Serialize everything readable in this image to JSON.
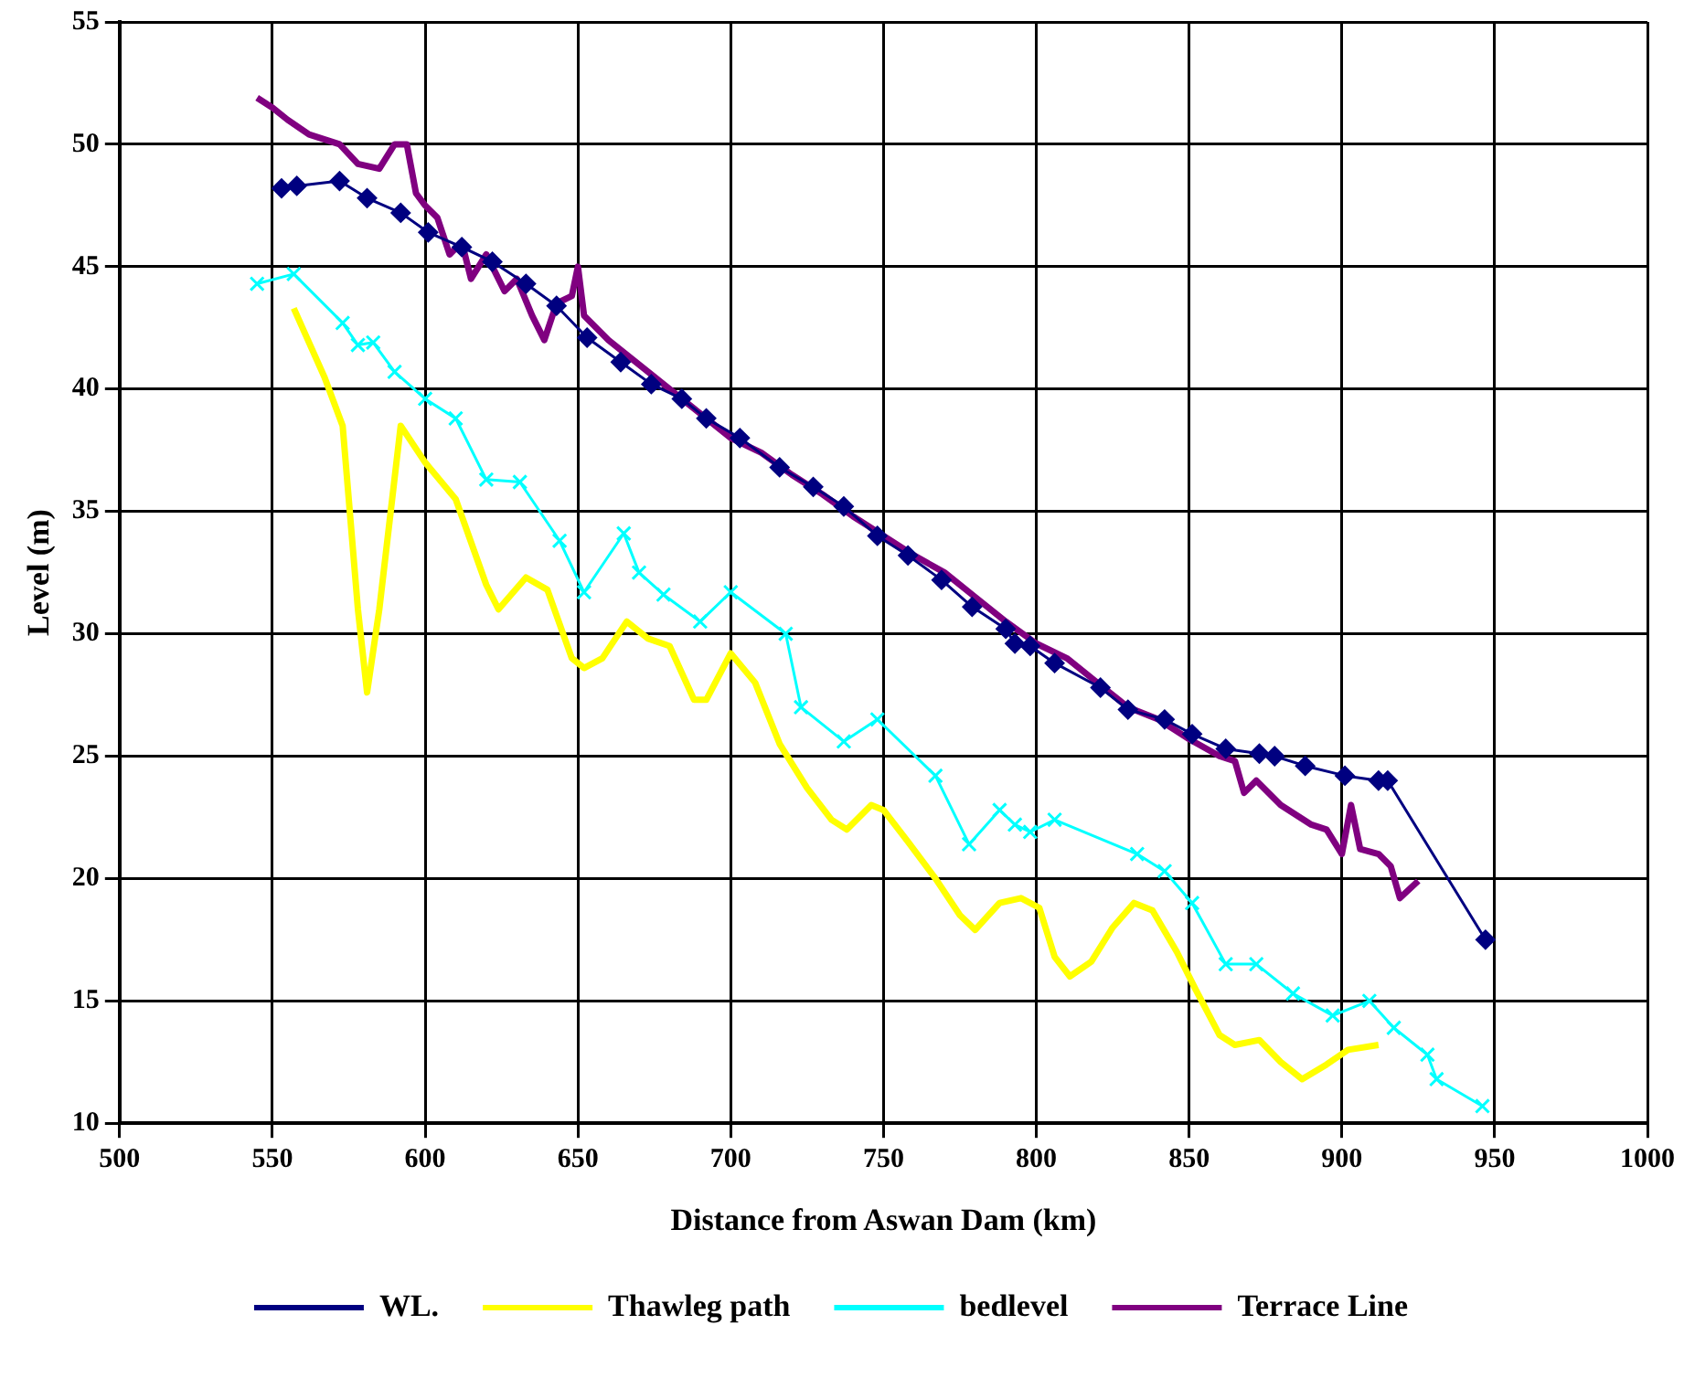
{
  "chart_data": {
    "type": "line",
    "xlabel": "Distance from Aswan Dam (km)",
    "ylabel": "Level (m)",
    "xlim": [
      500,
      1000
    ],
    "xticks": [
      500,
      550,
      600,
      650,
      700,
      750,
      800,
      850,
      900,
      950,
      1000
    ],
    "ylim": [
      10,
      55
    ],
    "yticks": [
      10,
      15,
      20,
      25,
      30,
      35,
      40,
      45,
      50,
      55
    ],
    "grid": true,
    "legend": "bottom",
    "series": [
      {
        "name": "WL.",
        "color": "#000080",
        "marker": "diamond",
        "x": [
          553,
          558,
          572,
          581,
          592,
          601,
          612,
          622,
          633,
          643,
          653,
          664,
          674,
          684,
          692,
          703,
          716,
          727,
          737,
          748,
          758,
          769,
          779,
          790,
          793,
          798,
          806,
          821,
          830,
          842,
          851,
          862,
          873,
          878,
          888,
          901,
          912,
          915,
          947
        ],
        "values": [
          48.2,
          48.3,
          48.5,
          47.8,
          47.2,
          46.4,
          45.8,
          45.2,
          44.3,
          43.4,
          42.1,
          41.1,
          40.2,
          39.6,
          38.8,
          38.0,
          36.8,
          36.0,
          35.2,
          34.0,
          33.2,
          32.2,
          31.1,
          30.2,
          29.6,
          29.5,
          28.8,
          27.8,
          26.9,
          26.5,
          25.9,
          25.3,
          25.1,
          25.0,
          24.6,
          24.2,
          24.0,
          24.0,
          17.5
        ]
      },
      {
        "name": "Thawleg path",
        "color": "#ffff00",
        "marker": "none",
        "x": [
          557,
          567,
          573,
          578,
          581,
          585,
          592,
          600,
          610,
          620,
          624,
          633,
          640,
          648,
          652,
          658,
          666,
          673,
          680,
          688,
          692,
          700,
          708,
          716,
          725,
          733,
          738,
          746,
          750,
          758,
          767,
          775,
          780,
          788,
          795,
          801,
          806,
          811,
          818,
          825,
          832,
          838,
          846,
          852,
          860,
          865,
          873,
          880,
          887,
          895,
          902,
          912
        ],
        "values": [
          43.3,
          40.5,
          38.5,
          31,
          27.6,
          31,
          38.5,
          37,
          35.5,
          32,
          31,
          32.3,
          31.8,
          29,
          28.6,
          29,
          30.5,
          29.8,
          29.5,
          27.3,
          27.3,
          29.2,
          28,
          25.5,
          23.7,
          22.4,
          22,
          23,
          22.8,
          21.5,
          20,
          18.5,
          17.9,
          19,
          19.2,
          18.8,
          16.8,
          16,
          16.6,
          18,
          19,
          18.7,
          17,
          15.5,
          13.6,
          13.2,
          13.4,
          12.5,
          11.8,
          12.4,
          13,
          13.2
        ]
      },
      {
        "name": "bedlevel",
        "color": "#00ffff",
        "marker": "cross",
        "x": [
          545,
          557,
          573,
          578,
          583,
          590,
          600,
          610,
          620,
          631,
          644,
          652,
          665,
          670,
          678,
          690,
          700,
          718,
          723,
          737,
          748,
          767,
          778,
          788,
          793,
          798,
          806,
          833,
          842,
          851,
          862,
          872,
          884,
          897,
          909,
          917,
          928,
          931,
          946
        ],
        "values": [
          44.3,
          44.7,
          42.7,
          41.8,
          41.9,
          40.7,
          39.6,
          38.8,
          36.3,
          36.2,
          33.8,
          31.7,
          34.1,
          32.5,
          31.6,
          30.5,
          31.7,
          30,
          27,
          25.6,
          26.5,
          24.2,
          21.4,
          22.8,
          22.2,
          21.9,
          22.4,
          21,
          20.3,
          19,
          16.5,
          16.5,
          15.3,
          14.4,
          15,
          13.9,
          12.8,
          11.8,
          10.7
        ]
      },
      {
        "name": "Terrace Line",
        "color": "#800080",
        "marker": "none",
        "x": [
          545,
          550,
          555,
          562,
          572,
          578,
          585,
          590,
          594,
          597,
          600,
          604,
          608,
          612,
          615,
          620,
          626,
          630,
          635,
          639,
          643,
          648,
          650,
          652,
          660,
          670,
          680,
          690,
          700,
          710,
          720,
          730,
          740,
          750,
          760,
          770,
          780,
          790,
          800,
          810,
          820,
          830,
          840,
          850,
          860,
          865,
          868,
          872,
          880,
          890,
          895,
          900,
          903,
          906,
          912,
          916,
          919,
          925
        ],
        "values": [
          51.9,
          51.5,
          51,
          50.4,
          50,
          49.2,
          49,
          50,
          50,
          48,
          47.5,
          47,
          45.5,
          46,
          44.5,
          45.5,
          44,
          44.5,
          43,
          42,
          43.5,
          43.8,
          45,
          43,
          42,
          41,
          40,
          39,
          38,
          37.4,
          36.5,
          35.7,
          34.8,
          34,
          33.2,
          32.5,
          31.5,
          30.5,
          29.6,
          29,
          28,
          27,
          26.5,
          25.7,
          25,
          24.8,
          23.5,
          24,
          23,
          22.2,
          22,
          21,
          23,
          21.2,
          21,
          20.5,
          19.2,
          19.9
        ]
      }
    ]
  }
}
